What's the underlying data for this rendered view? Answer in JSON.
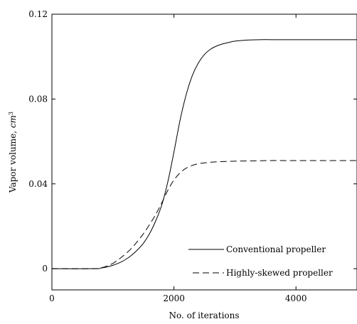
{
  "chart_data": {
    "type": "line",
    "xlabel": "No. of iterations",
    "ylabel_text": "Vapor volume, ",
    "ylabel_unit_base": "cm",
    "ylabel_unit_exp": "3",
    "xlim": [
      0,
      5000
    ],
    "ylim": [
      -0.01,
      0.12
    ],
    "x_ticks": [
      0,
      2000,
      4000
    ],
    "x_tick_labels": [
      "0",
      "2000",
      "4000"
    ],
    "y_ticks": [
      0,
      0.04,
      0.08,
      0.12
    ],
    "y_tick_labels": [
      "0",
      "0.04",
      "0.08",
      "0.12"
    ],
    "grid": false,
    "legend_position": "bottom-right",
    "series": [
      {
        "name": "Conventional propeller",
        "style": "solid",
        "x": [
          0,
          700,
          800,
          900,
          1000,
          1100,
          1200,
          1300,
          1400,
          1500,
          1600,
          1700,
          1800,
          1900,
          2000,
          2100,
          2200,
          2300,
          2400,
          2500,
          2600,
          2700,
          2800,
          2900,
          3000,
          3200,
          3400,
          3600,
          3800,
          4000,
          4500,
          5000
        ],
        "y": [
          0,
          0,
          0.0003,
          0.0008,
          0.0016,
          0.0027,
          0.0042,
          0.0062,
          0.0088,
          0.012,
          0.0165,
          0.0225,
          0.03,
          0.041,
          0.055,
          0.07,
          0.082,
          0.091,
          0.097,
          0.101,
          0.1035,
          0.105,
          0.106,
          0.1067,
          0.1073,
          0.1078,
          0.108,
          0.108,
          0.108,
          0.108,
          0.108,
          0.108
        ]
      },
      {
        "name": "Highly-skewed propeller",
        "style": "dashed",
        "x": [
          0,
          700,
          800,
          900,
          1000,
          1100,
          1200,
          1300,
          1400,
          1500,
          1600,
          1700,
          1800,
          1900,
          2000,
          2100,
          2200,
          2300,
          2400,
          2500,
          2600,
          2700,
          2800,
          3000,
          3200,
          3400,
          3600,
          3800,
          4000,
          4500,
          5000
        ],
        "y": [
          0,
          0,
          0.0004,
          0.0012,
          0.0025,
          0.0045,
          0.0068,
          0.0095,
          0.0128,
          0.0165,
          0.0208,
          0.0255,
          0.031,
          0.037,
          0.0418,
          0.0452,
          0.0474,
          0.0487,
          0.0495,
          0.0499,
          0.0502,
          0.0504,
          0.0505,
          0.0507,
          0.0508,
          0.0509,
          0.051,
          0.051,
          0.051,
          0.051,
          0.051
        ]
      }
    ]
  }
}
